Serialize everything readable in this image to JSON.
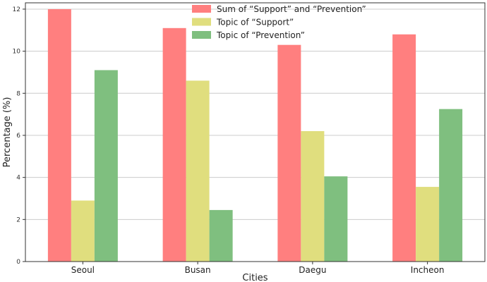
{
  "chart_data": {
    "type": "bar",
    "title": "",
    "xlabel": "Cities",
    "ylabel": "Percentage (%)",
    "categories": [
      "Seoul",
      "Busan",
      "Daegu",
      "Incheon"
    ],
    "ylim": [
      0,
      12.3
    ],
    "yticks": [
      0,
      2,
      4,
      6,
      8,
      10,
      12
    ],
    "grid": "horizontal",
    "legend_position": "top-center",
    "series": [
      {
        "name": "Sum of “Support” and “Prevention”",
        "color": "#ff7f7f",
        "values": [
          12.0,
          11.1,
          10.3,
          10.8
        ]
      },
      {
        "name": "Topic of “Support”",
        "color": "#e0de7e",
        "values": [
          2.9,
          8.6,
          6.2,
          3.55
        ]
      },
      {
        "name": "Topic of “Prevention”",
        "color": "#7fbf7f",
        "values": [
          9.1,
          2.45,
          4.05,
          7.25
        ]
      }
    ]
  }
}
